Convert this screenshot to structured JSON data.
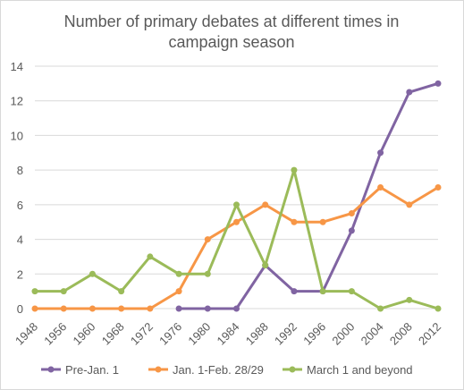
{
  "chart_data": {
    "type": "line",
    "title": "Number of primary debates at different times in campaign season",
    "title_lines": [
      "Number of primary debates at different times in",
      "campaign season"
    ],
    "x": [
      "1948",
      "1956",
      "1960",
      "1968",
      "1972",
      "1976",
      "1980",
      "1984",
      "1988",
      "1992",
      "1996",
      "2000",
      "2004",
      "2008",
      "2012"
    ],
    "ylim": [
      0,
      14
    ],
    "yticks": [
      0,
      2,
      4,
      6,
      8,
      10,
      12,
      14
    ],
    "grid": true,
    "legend_position": "bottom",
    "series": [
      {
        "name": "Pre-Jan. 1",
        "color": "#8064a2",
        "values": [
          null,
          null,
          null,
          null,
          null,
          0,
          0,
          0,
          2.5,
          1,
          1,
          4.5,
          9,
          12.5,
          13
        ]
      },
      {
        "name": "Jan. 1-Feb. 28/29",
        "color": "#f79646",
        "values": [
          0,
          0,
          0,
          0,
          0,
          1,
          4,
          5,
          6,
          5,
          5,
          5.5,
          7,
          6,
          7
        ]
      },
      {
        "name": "March 1 and beyond",
        "color": "#9bbb59",
        "values": [
          1,
          1,
          2,
          1,
          3,
          2,
          2,
          6,
          2.5,
          8,
          1,
          1,
          0,
          0.5,
          0
        ]
      }
    ]
  }
}
